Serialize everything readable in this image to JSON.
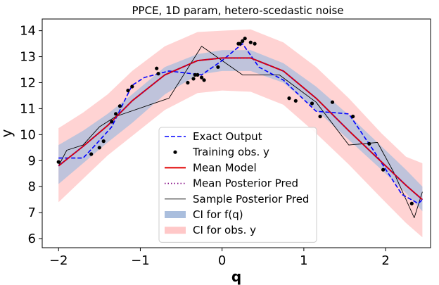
{
  "chart_data": {
    "type": "line",
    "title": "PPCE, 1D param, hetero-scedastic noise",
    "xlabel": "q",
    "ylabel": "y",
    "xlim": [
      -2.2,
      2.55
    ],
    "ylim": [
      5.65,
      14.45
    ],
    "xticks": [
      -2,
      -1,
      0,
      1,
      2
    ],
    "yticks": [
      6,
      7,
      8,
      9,
      10,
      11,
      12,
      13,
      14
    ],
    "grid": false,
    "legend_position": "lower center",
    "colors": {
      "exact": "#0000ff",
      "mean_model": "#e00000",
      "mean_posterior": "#800080",
      "sample_posterior": "#000000",
      "ci_f": "#aabedd",
      "ci_obs": "#ffc8c8",
      "training": "#000000"
    },
    "legend": [
      {
        "key": "exact",
        "label": "Exact Output",
        "style": "dashed"
      },
      {
        "key": "training",
        "label": "Training obs. y",
        "style": "marker"
      },
      {
        "key": "mean_model",
        "label": "Mean Model",
        "style": "line"
      },
      {
        "key": "mean_posterior",
        "label": "Mean Posterior Pred",
        "style": "dotted"
      },
      {
        "key": "sample_posterior",
        "label": "Sample Posterior Pred",
        "style": "thin"
      },
      {
        "key": "ci_f",
        "label": "CI for f(q)",
        "style": "patch"
      },
      {
        "key": "ci_obs",
        "label": "CI for obs. y",
        "style": "patch"
      }
    ],
    "grid_x": [
      -2.0,
      -1.7,
      -1.4,
      -1.1,
      -0.7,
      -0.3,
      0.0,
      0.35,
      0.75,
      1.15,
      1.55,
      1.95,
      2.25,
      2.45
    ],
    "ci_obs_lower": [
      7.4,
      8.3,
      9.2,
      9.95,
      10.95,
      11.6,
      11.7,
      11.65,
      11.15,
      10.05,
      8.85,
      7.55,
      6.6,
      6.05
    ],
    "ci_obs_upper": [
      10.25,
      10.85,
      11.55,
      12.45,
      13.4,
      13.95,
      14.0,
      14.05,
      13.55,
      12.6,
      11.4,
      10.05,
      9.15,
      8.9
    ],
    "ci_f_lower": [
      8.1,
      8.9,
      9.7,
      10.45,
      11.55,
      12.3,
      12.45,
      12.45,
      12.0,
      10.95,
      9.8,
      8.65,
      7.75,
      7.05
    ],
    "ci_f_upper": [
      9.6,
      10.15,
      10.8,
      11.55,
      12.6,
      13.1,
      13.25,
      13.25,
      12.75,
      11.85,
      10.75,
      9.55,
      8.65,
      8.0
    ],
    "series": [
      {
        "name": "Exact Output",
        "key": "exact",
        "x": [
          -2.0,
          -1.7,
          -1.55,
          -1.35,
          -1.1,
          -0.95,
          -0.65,
          -0.25,
          0.0,
          0.25,
          0.45,
          0.75,
          1.15,
          1.55,
          1.85,
          2.2,
          2.4,
          2.45
        ],
        "y": [
          9.1,
          9.1,
          9.6,
          10.3,
          11.9,
          12.2,
          12.45,
          12.3,
          12.85,
          13.5,
          12.6,
          12.1,
          10.9,
          10.8,
          9.4,
          7.7,
          7.35,
          7.5
        ]
      },
      {
        "name": "Mean Model",
        "key": "mean_model",
        "x": [
          -2.0,
          -1.7,
          -1.4,
          -1.1,
          -0.7,
          -0.3,
          0.0,
          0.35,
          0.75,
          1.15,
          1.55,
          1.95,
          2.25,
          2.45
        ],
        "y": [
          8.8,
          9.55,
          10.35,
          11.3,
          12.3,
          12.85,
          12.95,
          12.95,
          12.45,
          11.4,
          10.15,
          8.95,
          8.05,
          7.5
        ]
      },
      {
        "name": "Mean Posterior Pred",
        "key": "mean_posterior",
        "x": [
          -2.0,
          -1.7,
          -1.4,
          -1.1,
          -0.7,
          -0.3,
          0.0,
          0.35,
          0.75,
          1.15,
          1.55,
          1.95,
          2.25,
          2.45
        ],
        "y": [
          8.8,
          9.55,
          10.35,
          11.3,
          12.3,
          12.85,
          12.95,
          12.95,
          12.45,
          11.4,
          10.15,
          8.95,
          8.05,
          7.5
        ]
      },
      {
        "name": "Sample Posterior Pred",
        "key": "sample_posterior",
        "x": [
          -2.0,
          -1.9,
          -1.7,
          -1.5,
          -1.3,
          -0.65,
          -0.25,
          0.25,
          0.7,
          1.15,
          1.55,
          1.9,
          2.1,
          2.35,
          2.45
        ],
        "y": [
          8.8,
          9.4,
          9.6,
          10.3,
          10.7,
          11.4,
          13.4,
          12.3,
          12.3,
          11.25,
          9.6,
          9.7,
          8.55,
          6.8,
          7.8
        ]
      }
    ],
    "training_points": {
      "name": "Training obs. y",
      "x": [
        -2.0,
        -1.6,
        -1.5,
        -1.45,
        -1.35,
        -1.3,
        -1.25,
        -1.15,
        -1.1,
        -0.8,
        -0.78,
        -0.42,
        -0.35,
        -0.33,
        -0.3,
        -0.25,
        -0.22,
        -0.05,
        0.2,
        0.22,
        0.25,
        0.28,
        0.35,
        0.4,
        0.82,
        0.9,
        1.1,
        1.2,
        1.35,
        1.6,
        1.8,
        1.97,
        2.32
      ],
      "y": [
        8.95,
        9.25,
        9.5,
        9.75,
        10.5,
        10.8,
        11.1,
        11.7,
        11.85,
        12.55,
        12.35,
        12.0,
        12.15,
        12.3,
        12.3,
        12.2,
        12.1,
        12.6,
        13.5,
        13.5,
        13.6,
        13.7,
        13.55,
        13.5,
        11.4,
        11.3,
        11.2,
        10.7,
        11.25,
        10.7,
        9.65,
        8.65,
        7.35
      ]
    }
  }
}
